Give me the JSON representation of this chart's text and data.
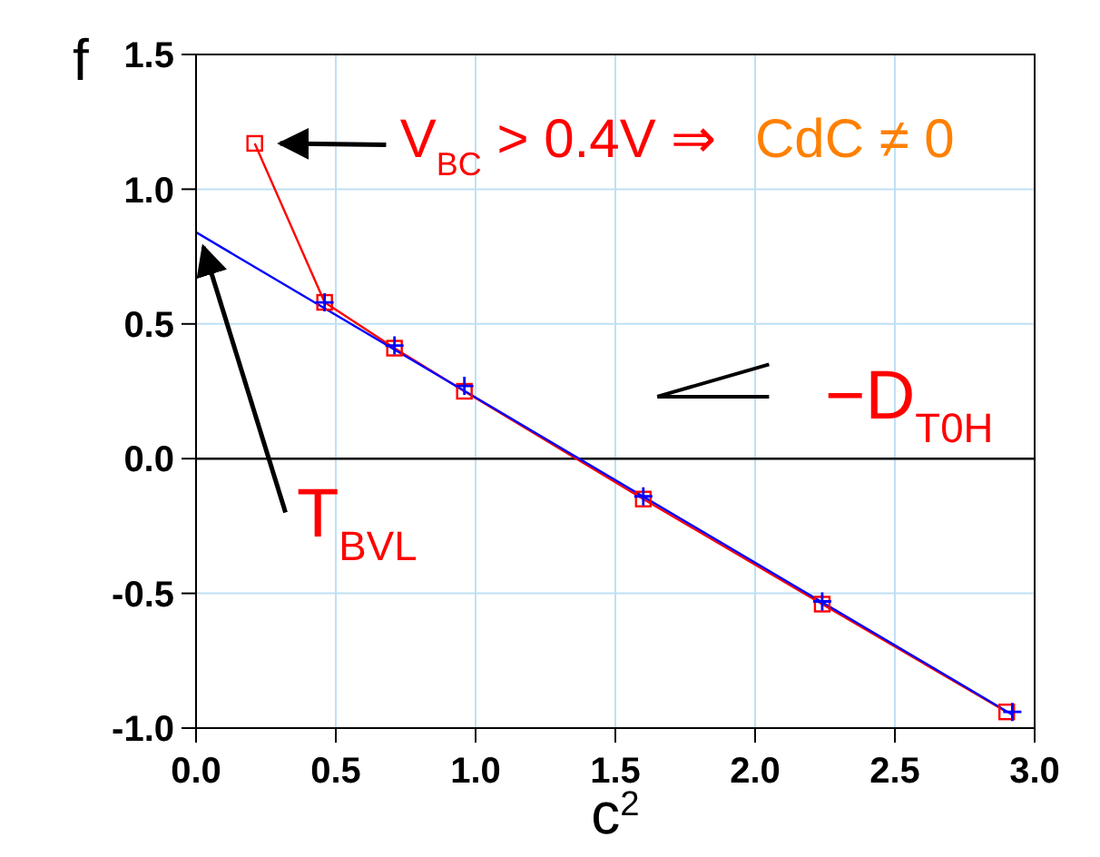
{
  "chart_data": {
    "type": "line",
    "xlabel": "c$^{2}$",
    "ylabel": "f",
    "xlim": [
      0,
      3
    ],
    "xticks": [
      {
        "value": 0,
        "label": "0.0"
      },
      0.5,
      {
        "value": 1,
        "label": "1.0"
      },
      1.5,
      {
        "value": 2,
        "label": "2.0"
      },
      2.5,
      {
        "value": 3,
        "label": "3.0"
      }
    ],
    "ylim": [
      -1,
      1.5
    ],
    "yticks": [
      {
        "value": -1,
        "label": "-1.0"
      },
      -0.5,
      {
        "value": 0,
        "label": "0.0"
      },
      0.5,
      {
        "value": 1,
        "label": "1.0"
      },
      1.5
    ],
    "grid": true,
    "series": [
      {
        "color": "#ff0000",
        "marker": "square",
        "x": [
          0.21,
          0.46,
          0.71,
          0.96,
          1.6,
          2.24,
          2.9
        ],
        "values": [
          1.17,
          0.58,
          0.41,
          0.25,
          -0.15,
          -0.54,
          -0.94
        ]
      },
      {
        "color": "#0000ff",
        "marker": "none",
        "x": [
          0,
          2.92
        ],
        "values": [
          0.84,
          -0.95
        ]
      },
      {
        "type": "scatter",
        "color": "#0000ff",
        "marker": "cross",
        "x": [
          0.46,
          0.71,
          0.96,
          1.6,
          2.24,
          2.92
        ],
        "values": [
          0.58,
          0.42,
          0.27,
          -0.14,
          -0.53,
          -0.94
        ]
      }
    ],
    "ref_lines": [
      {
        "axis": "y",
        "value": 0,
        "color": "#000000"
      }
    ],
    "annotations": [
      {
        "text": "V$_{BC}$ > 0.4V ⇒",
        "x": 0.21,
        "y": 1.17
      },
      "CdC ≠ 0",
      {
        "text": "T$_{BVL}$",
        "x": 0,
        "y": 0.84
      },
      "−D$_{T0H}$"
    ]
  }
}
